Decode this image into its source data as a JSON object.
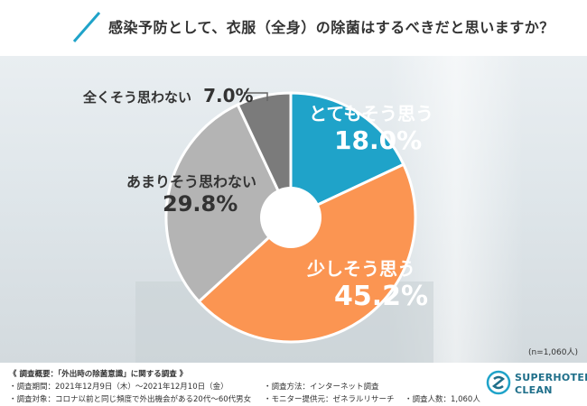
{
  "title": "感染予防として、衣服（全身）の除菌はするべきだと思いますか？",
  "sample_size": "(n=1,060人)",
  "chart_data": {
    "type": "pie",
    "slices": [
      {
        "label": "とてもそう思う",
        "value": 18.0,
        "display": "18.0%",
        "color": "#1fa3c9"
      },
      {
        "label": "少しそう思う",
        "value": 45.2,
        "display": "45.2%",
        "color": "#fb9552"
      },
      {
        "label": "あまりそう思わない",
        "value": 29.8,
        "display": "29.8%",
        "color": "#b4b4b4"
      },
      {
        "label": "全くそう思わない",
        "value": 7.0,
        "display": "7.0%",
        "color": "#7b7b7b"
      }
    ],
    "donut": true
  },
  "footer": {
    "overview": "《 調査概要：「外出時の除菌意識」に関する調査 》",
    "period": "・調査期間：2021年12月9日（木）～2021年12月10日（金）",
    "target": "・調査対象：コロナ以前と同じ頻度で外出機会がある20代～60代男女",
    "method": "・調査方法：インターネット調査",
    "provider": "・モニター提供元：ゼネラルリサーチ",
    "count": "・調査人数：1,060人"
  },
  "logo": {
    "line1": "SUPERHOTEL",
    "line2": "CLEAN"
  },
  "colors": {
    "accent": "#1fa3c9",
    "orange": "#fb9552",
    "gray_light": "#b4b4b4",
    "gray_dark": "#7b7b7b"
  }
}
